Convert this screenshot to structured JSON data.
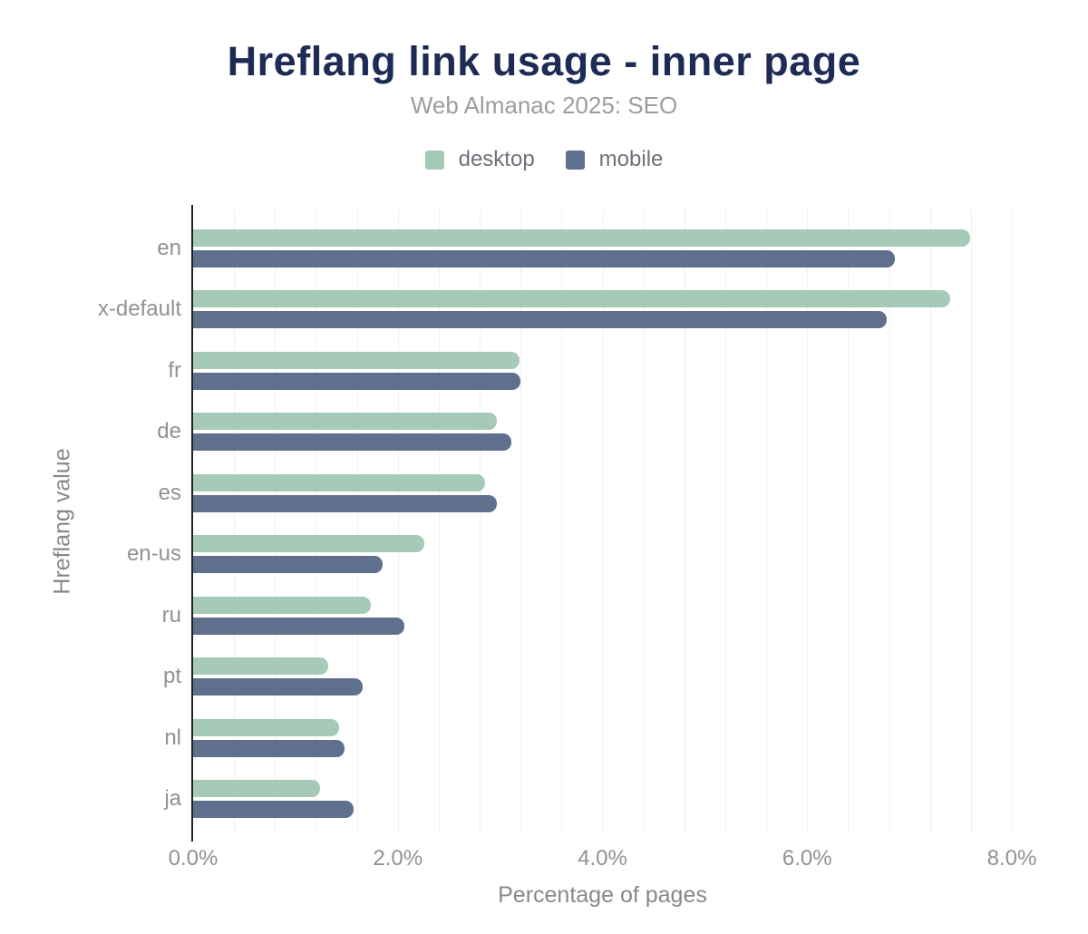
{
  "chart_data": {
    "type": "bar",
    "orientation": "horizontal",
    "title": "Hreflang link usage - inner page",
    "subtitle": "Web Almanac 2025: SEO",
    "xlabel": "Percentage of pages",
    "ylabel": "Hreflang value",
    "categories": [
      "en",
      "x-default",
      "fr",
      "de",
      "es",
      "en-us",
      "ru",
      "pt",
      "nl",
      "ja"
    ],
    "series": [
      {
        "name": "desktop",
        "color": "#a6cab8",
        "values": [
          7.59,
          7.4,
          3.19,
          2.97,
          2.85,
          2.26,
          1.74,
          1.32,
          1.43,
          1.24
        ]
      },
      {
        "name": "mobile",
        "color": "#5e708e",
        "values": [
          6.86,
          6.78,
          3.2,
          3.11,
          2.97,
          1.85,
          2.06,
          1.66,
          1.48,
          1.57
        ]
      }
    ],
    "xlim": [
      0,
      8
    ],
    "xticks": [
      0,
      2,
      4,
      6,
      8
    ],
    "xtick_labels": [
      "0.0%",
      "2.0%",
      "4.0%",
      "6.0%",
      "8.0%"
    ],
    "grid": "vertical",
    "grid_step": 0.4,
    "legend_position": "top",
    "value_unit": "%"
  },
  "colors": {
    "title": "#1e2c55",
    "subtitle": "#9b9da1",
    "legend_text": "#6e7278",
    "axis_labels": "#8f9194",
    "axis_titles": "#85888d",
    "gridline": "#f0f0f2",
    "axis_line": "#222222",
    "background": "#ffffff"
  }
}
